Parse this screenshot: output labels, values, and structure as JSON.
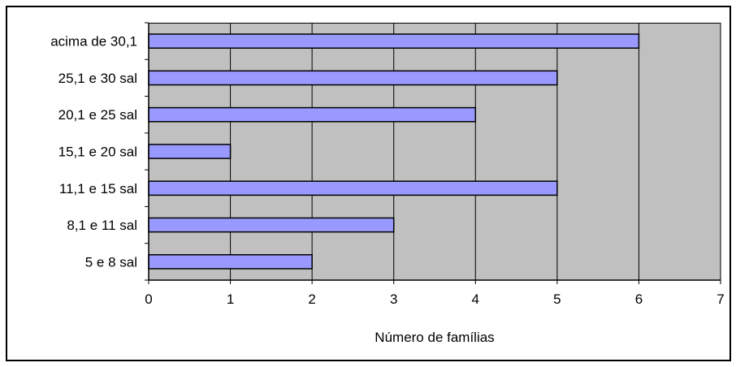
{
  "chart_data": {
    "type": "bar",
    "orientation": "horizontal",
    "categories": [
      "acima de 30,1",
      "25,1 e 30 sal",
      "20,1 e 25 sal",
      "15,1 e 20 sal",
      "11,1 e 15 sal",
      "8,1 e 11 sal",
      "5 e 8 sal"
    ],
    "values": [
      6,
      5,
      4,
      1,
      5,
      3,
      2
    ],
    "xlabel": "Número de famílias",
    "ylabel": "",
    "title": "",
    "xlim": [
      0,
      7
    ],
    "xticks": [
      "0",
      "1",
      "2",
      "3",
      "4",
      "5",
      "6",
      "7"
    ],
    "grid": "vertical",
    "legend": "none",
    "colors": {
      "plot_background": "#c0c0c0",
      "bar_fill": "#9999ff",
      "bar_stroke": "#000000",
      "grid": "#000000"
    }
  }
}
